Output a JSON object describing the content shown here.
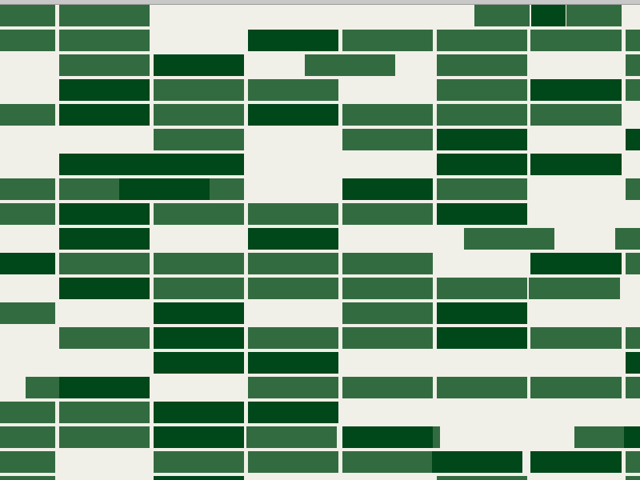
{
  "palette": {
    "light": "#336b40",
    "dark": "#00471a",
    "background": "#f0f0e8"
  },
  "rows": [
    [
      [
        "L",
        0,
        69
      ],
      [
        "L",
        74,
        187
      ],
      [
        "L",
        593,
        662
      ],
      [
        "D",
        664,
        707
      ],
      [
        "L",
        708,
        777
      ]
    ],
    [
      [
        "L",
        0,
        69
      ],
      [
        "L",
        74,
        187
      ],
      [
        "D",
        310,
        423
      ],
      [
        "L",
        428,
        541
      ],
      [
        "L",
        546,
        659
      ],
      [
        "L",
        663,
        777
      ],
      [
        "L",
        782,
        800
      ]
    ],
    [
      [
        "L",
        74,
        187
      ],
      [
        "D",
        192,
        305
      ],
      [
        "L",
        381,
        494
      ],
      [
        "L",
        546,
        659
      ],
      [
        "L",
        782,
        800
      ]
    ],
    [
      [
        "D",
        74,
        187
      ],
      [
        "L",
        192,
        305
      ],
      [
        "L",
        310,
        423
      ],
      [
        "L",
        546,
        659
      ],
      [
        "D",
        663,
        777
      ],
      [
        "L",
        782,
        800
      ]
    ],
    [
      [
        "L",
        0,
        69
      ],
      [
        "D",
        74,
        187
      ],
      [
        "L",
        192,
        305
      ],
      [
        "D",
        310,
        423
      ],
      [
        "L",
        428,
        541
      ],
      [
        "L",
        546,
        659
      ],
      [
        "L",
        663,
        777
      ]
    ],
    [
      [
        "L",
        192,
        305
      ],
      [
        "L",
        428,
        541
      ],
      [
        "D",
        546,
        659
      ],
      [
        "D",
        782,
        800
      ]
    ],
    [
      [
        "D",
        74,
        187
      ],
      [
        "D",
        119,
        232
      ],
      [
        "D",
        192,
        305
      ],
      [
        "D",
        546,
        659
      ],
      [
        "D",
        663,
        745
      ],
      [
        "D",
        745,
        777
      ]
    ],
    [
      [
        "L",
        0,
        69
      ],
      [
        "L",
        74,
        187
      ],
      [
        "D",
        149,
        262
      ],
      [
        "L",
        262,
        305
      ],
      [
        "D",
        428,
        541
      ],
      [
        "L",
        546,
        659
      ],
      [
        "L",
        782,
        800
      ]
    ],
    [
      [
        "L",
        0,
        69
      ],
      [
        "D",
        74,
        187
      ],
      [
        "L",
        192,
        305
      ],
      [
        "L",
        310,
        423
      ],
      [
        "L",
        428,
        541
      ],
      [
        "D",
        546,
        659
      ]
    ],
    [
      [
        "D",
        74,
        187
      ],
      [
        "D",
        310,
        423
      ],
      [
        "L",
        580,
        693
      ],
      [
        "L",
        769,
        800
      ]
    ],
    [
      [
        "D",
        0,
        69
      ],
      [
        "L",
        74,
        187
      ],
      [
        "L",
        192,
        305
      ],
      [
        "L",
        310,
        423
      ],
      [
        "L",
        428,
        541
      ],
      [
        "D",
        663,
        777
      ],
      [
        "L",
        782,
        800
      ]
    ],
    [
      [
        "D",
        74,
        187
      ],
      [
        "L",
        192,
        305
      ],
      [
        "L",
        310,
        423
      ],
      [
        "L",
        428,
        541
      ],
      [
        "L",
        546,
        659
      ],
      [
        "L",
        661,
        775
      ]
    ],
    [
      [
        "L",
        0,
        69
      ],
      [
        "D",
        192,
        305
      ],
      [
        "L",
        428,
        541
      ],
      [
        "D",
        546,
        659
      ]
    ],
    [
      [
        "L",
        74,
        187
      ],
      [
        "D",
        192,
        305
      ],
      [
        "L",
        310,
        423
      ],
      [
        "L",
        428,
        541
      ],
      [
        "D",
        546,
        659
      ],
      [
        "L",
        663,
        777
      ],
      [
        "L",
        782,
        800
      ]
    ],
    [
      [
        "D",
        192,
        305
      ],
      [
        "D",
        310,
        423
      ],
      [
        "D",
        782,
        800
      ]
    ],
    [
      [
        "L",
        32,
        145
      ],
      [
        "D",
        74,
        187
      ],
      [
        "L",
        310,
        423
      ],
      [
        "L",
        428,
        541
      ],
      [
        "L",
        546,
        659
      ],
      [
        "L",
        663,
        777
      ],
      [
        "L",
        782,
        800
      ]
    ],
    [
      [
        "L",
        0,
        69
      ],
      [
        "L",
        74,
        187
      ],
      [
        "D",
        192,
        305
      ],
      [
        "D",
        310,
        423
      ]
    ],
    [
      [
        "L",
        0,
        69
      ],
      [
        "L",
        74,
        187
      ],
      [
        "D",
        192,
        305
      ],
      [
        "L",
        308,
        421
      ],
      [
        "D",
        428,
        541
      ],
      [
        "L",
        541,
        550
      ],
      [
        "L",
        718,
        780
      ],
      [
        "D",
        780,
        800
      ]
    ],
    [
      [
        "L",
        0,
        69
      ],
      [
        "L",
        192,
        305
      ],
      [
        "L",
        310,
        423
      ],
      [
        "L",
        428,
        541
      ],
      [
        "D",
        540,
        653
      ],
      [
        "D",
        663,
        777
      ],
      [
        "L",
        782,
        800
      ]
    ],
    [
      [
        "L",
        0,
        69
      ],
      [
        "D",
        192,
        305
      ],
      [
        "L",
        546,
        659
      ],
      [
        "L",
        782,
        800
      ]
    ]
  ]
}
